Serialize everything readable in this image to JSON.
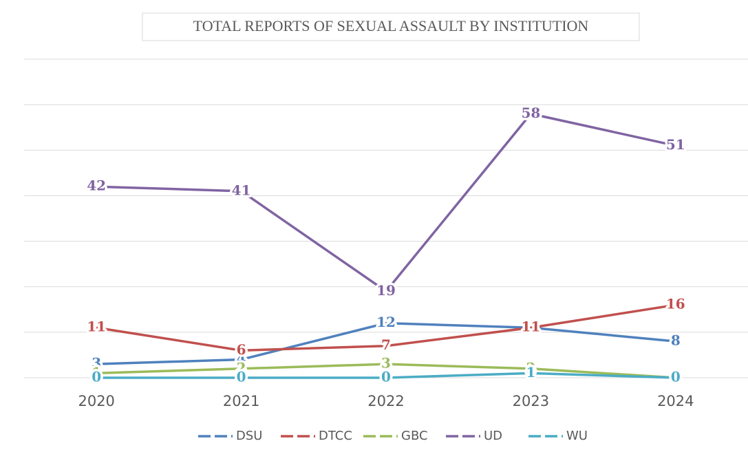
{
  "chart_data": {
    "type": "line",
    "title": "TOTAL  REPORTS OF SEXUAL ASSAULT BY INSTITUTION",
    "categories": [
      "2020",
      "2021",
      "2022",
      "2023",
      "2024"
    ],
    "series": [
      {
        "name": "DSU",
        "color": "#4f81bd",
        "values": [
          3,
          4,
          12,
          11,
          8
        ]
      },
      {
        "name": "DTCC",
        "color": "#c0504d",
        "values": [
          11,
          6,
          7,
          11,
          16
        ]
      },
      {
        "name": "GBC",
        "color": "#9bbb59",
        "values": [
          1,
          2,
          3,
          2,
          0
        ]
      },
      {
        "name": "UD",
        "color": "#8064a2",
        "values": [
          42,
          41,
          19,
          58,
          51
        ]
      },
      {
        "name": "WU",
        "color": "#4bacc6",
        "values": [
          0,
          0,
          0,
          1,
          0
        ]
      }
    ],
    "ylim": [
      0,
      70
    ],
    "yticks": [
      0,
      10,
      20,
      30,
      40,
      50,
      60,
      70
    ],
    "grid": true
  }
}
